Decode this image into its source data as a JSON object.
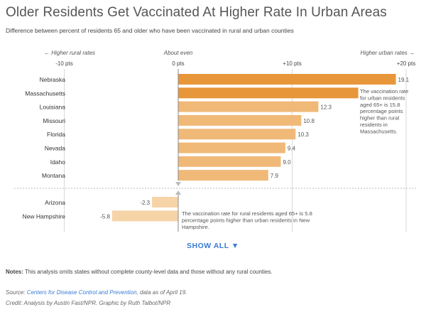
{
  "header": {
    "title": "Older Residents Get Vaccinated At Higher Rate In Urban Areas",
    "subtitle": "Difference between percent of residents 65 and older who have been vaccinated in rural and urban counties"
  },
  "axis_labels": {
    "left": "← Higher rural rates",
    "center": "About even",
    "right": "Higher urban rates →"
  },
  "show_all_label": "SHOW ALL ▼",
  "notes": {
    "label": "Notes:",
    "text": " This analysis omits states without complete county-level data and those without any rural counties."
  },
  "source": {
    "label": "Source: ",
    "link": "Centers for Disease Control and Prevention",
    "text": ", data as of April 19."
  },
  "credit": "Credit: Analysis by Austin Fast/NPR. Graphic by Ruth Talbot/NPR",
  "colors": {
    "top_bar": "#e8963a",
    "urban_bar": "#f0b978",
    "rural_bar": "#f7d3a8",
    "grid": "#d8d8d8",
    "zero_line": "#888888"
  },
  "chart_data": {
    "type": "bar",
    "orientation": "horizontal",
    "xlim": [
      -10,
      20
    ],
    "ticks": [
      -10,
      0,
      10,
      20
    ],
    "tick_labels": [
      "-10 pts",
      "0 pts",
      "+10 pts",
      "+20 pts"
    ],
    "groups": [
      {
        "name": "urban",
        "rows": [
          {
            "state": "Nebraska",
            "value": 19.1,
            "label": "19.1"
          },
          {
            "state": "Massachusetts",
            "value": 15.8,
            "label": ""
          },
          {
            "state": "Louisiana",
            "value": 12.3,
            "label": "12.3"
          },
          {
            "state": "Missouri",
            "value": 10.8,
            "label": "10.8"
          },
          {
            "state": "Florida",
            "value": 10.3,
            "label": "10.3"
          },
          {
            "state": "Nevada",
            "value": 9.4,
            "label": "9.4"
          },
          {
            "state": "Idaho",
            "value": 9.0,
            "label": "9.0"
          },
          {
            "state": "Montana",
            "value": 7.9,
            "label": "7.9"
          }
        ]
      },
      {
        "name": "rural",
        "rows": [
          {
            "state": "Arizona",
            "value": -2.3,
            "label": "-2.3"
          },
          {
            "state": "New Hampshire",
            "value": -5.8,
            "label": "-5.8"
          }
        ]
      }
    ],
    "annotations": [
      {
        "state": "Massachusetts",
        "lines": [
          "The vaccination rate",
          "for urban residents",
          "aged 65+ is 15.8",
          "percentage points",
          "higher than rural",
          "residents in",
          "Massachusetts."
        ]
      },
      {
        "state": "New Hampshire",
        "lines": [
          "The vaccination rate for rural residents aged 65+ is 5.8",
          "percentage points higher than urban residents in New",
          "Hampshire."
        ]
      }
    ]
  }
}
